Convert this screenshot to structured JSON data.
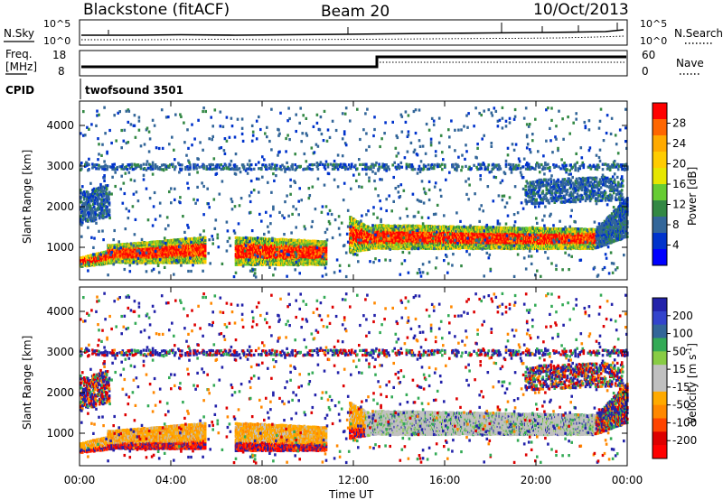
{
  "header": {
    "station": "Blackstone (fitACF)",
    "beam": "Beam 20",
    "date": "10/Oct/2013"
  },
  "noise_panel": {
    "left_label": "N.Sky",
    "right_label": "N.Search",
    "ticks": [
      "10^5",
      "10^0"
    ]
  },
  "freq_panel": {
    "left_label_line1": "Freq.",
    "left_label_line2": "[MHz]",
    "left_ticks": [
      "18",
      "8"
    ],
    "right_label": "Nave",
    "right_ticks": [
      "60",
      "0"
    ]
  },
  "cpid_panel": {
    "label": "CPID",
    "value": "twofsound 3501"
  },
  "chart_data": [
    {
      "type": "heatmap",
      "name": "power",
      "ylabel": "Slant Range [km]",
      "xlabel": "",
      "yticks": [
        "1000",
        "2000",
        "3000",
        "4000"
      ],
      "ylim": [
        200,
        4600
      ],
      "xlim_hours": [
        0,
        24
      ],
      "colorbar": {
        "label": "Power [dB]",
        "ticks": [
          "28",
          "24",
          "20",
          "16",
          "12",
          "8",
          "4"
        ],
        "colors": [
          "#ff0000",
          "#ff6600",
          "#ffaa00",
          "#ffcc00",
          "#e6e600",
          "#66cc33",
          "#338844",
          "#336699",
          "#0033cc",
          "#0000ff"
        ]
      }
    },
    {
      "type": "heatmap",
      "name": "velocity",
      "ylabel": "Slant Range [km]",
      "xlabel": "Time UT",
      "xticks": [
        "00:00",
        "04:00",
        "08:00",
        "12:00",
        "16:00",
        "20:00",
        "00:00"
      ],
      "yticks": [
        "1000",
        "2000",
        "3000",
        "4000"
      ],
      "ylim": [
        200,
        4600
      ],
      "xlim_hours": [
        0,
        24
      ],
      "colorbar": {
        "label": "Velocity [m s",
        "label_sup": "-1",
        "label_end": "]",
        "ticks": [
          "200",
          "100",
          "50",
          "15",
          "-15",
          "-50",
          "-100",
          "-200"
        ],
        "colors": [
          "#2222aa",
          "#3344cc",
          "#336699",
          "#33aa55",
          "#88cc44",
          "#c0c0c0",
          "#c0c0c0",
          "#ffaa00",
          "#ff8800",
          "#ff4400",
          "#dd0000",
          "#ff0000"
        ]
      }
    }
  ]
}
